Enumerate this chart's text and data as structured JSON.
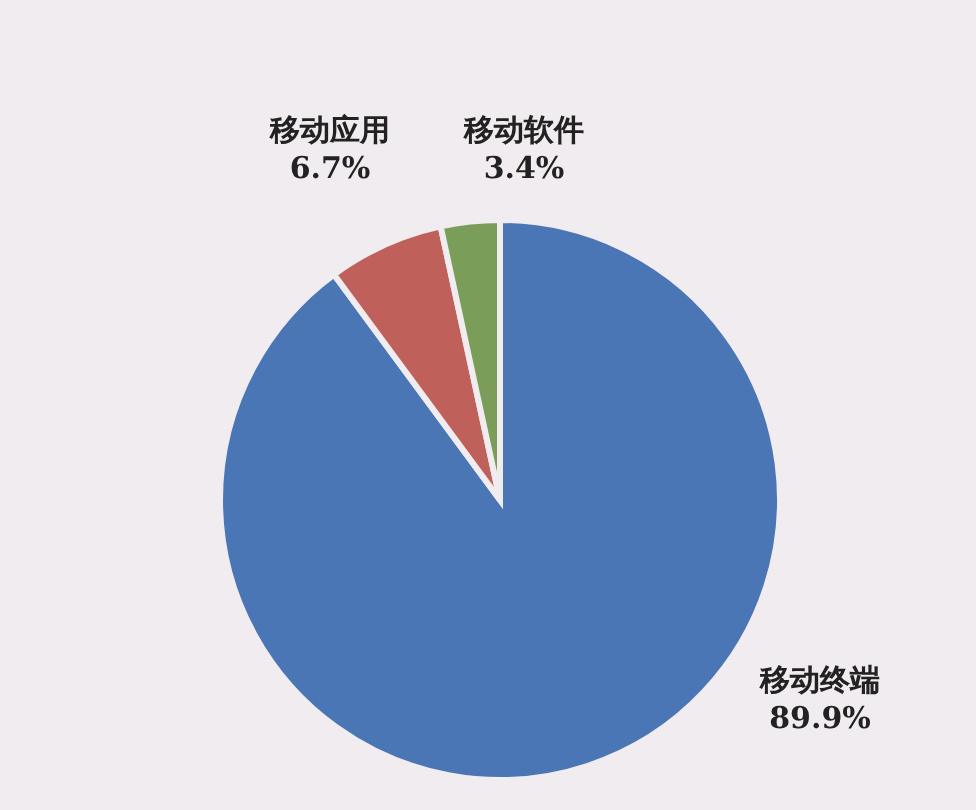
{
  "chart_data": {
    "type": "pie",
    "categories": [
      "移动终端",
      "移动应用",
      "移动软件"
    ],
    "values": [
      89.9,
      6.7,
      3.4
    ],
    "colors": [
      "#4a76b5",
      "#c0605a",
      "#7a9e5a"
    ],
    "value_labels": [
      "89.9%",
      "6.7%",
      "3.4%"
    ]
  }
}
